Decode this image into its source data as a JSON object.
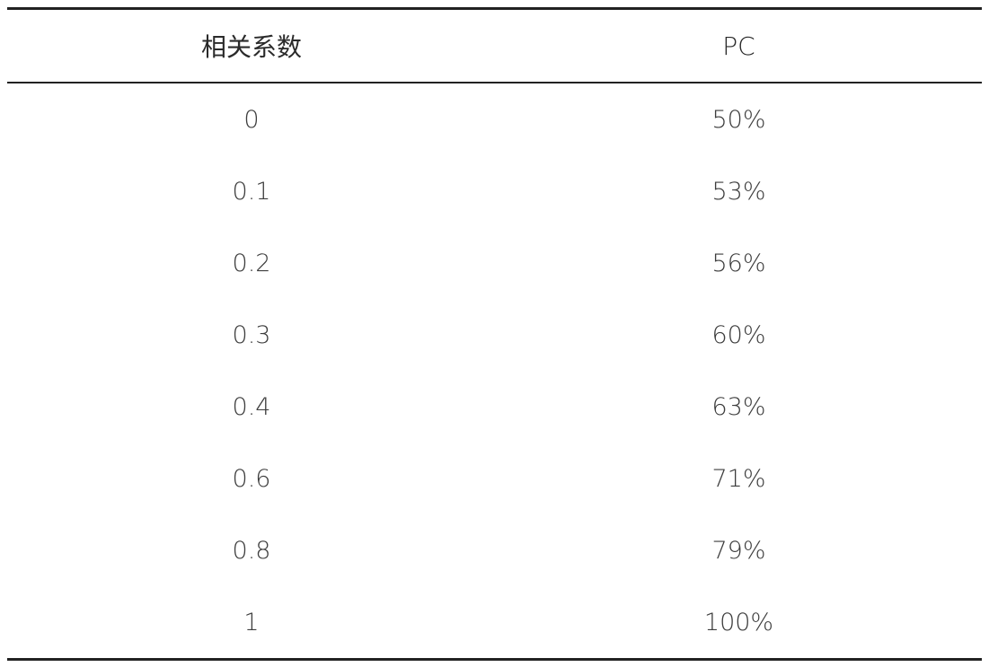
{
  "table": {
    "headers": [
      "相关系数",
      "PC"
    ],
    "rows": [
      [
        "0",
        "50%"
      ],
      [
        "0.1",
        "53%"
      ],
      [
        "0.2",
        "56%"
      ],
      [
        "0.3",
        "60%"
      ],
      [
        "0.4",
        "63%"
      ],
      [
        "0.6",
        "71%"
      ],
      [
        "0.8",
        "79%"
      ],
      [
        "1",
        "100%"
      ]
    ]
  }
}
